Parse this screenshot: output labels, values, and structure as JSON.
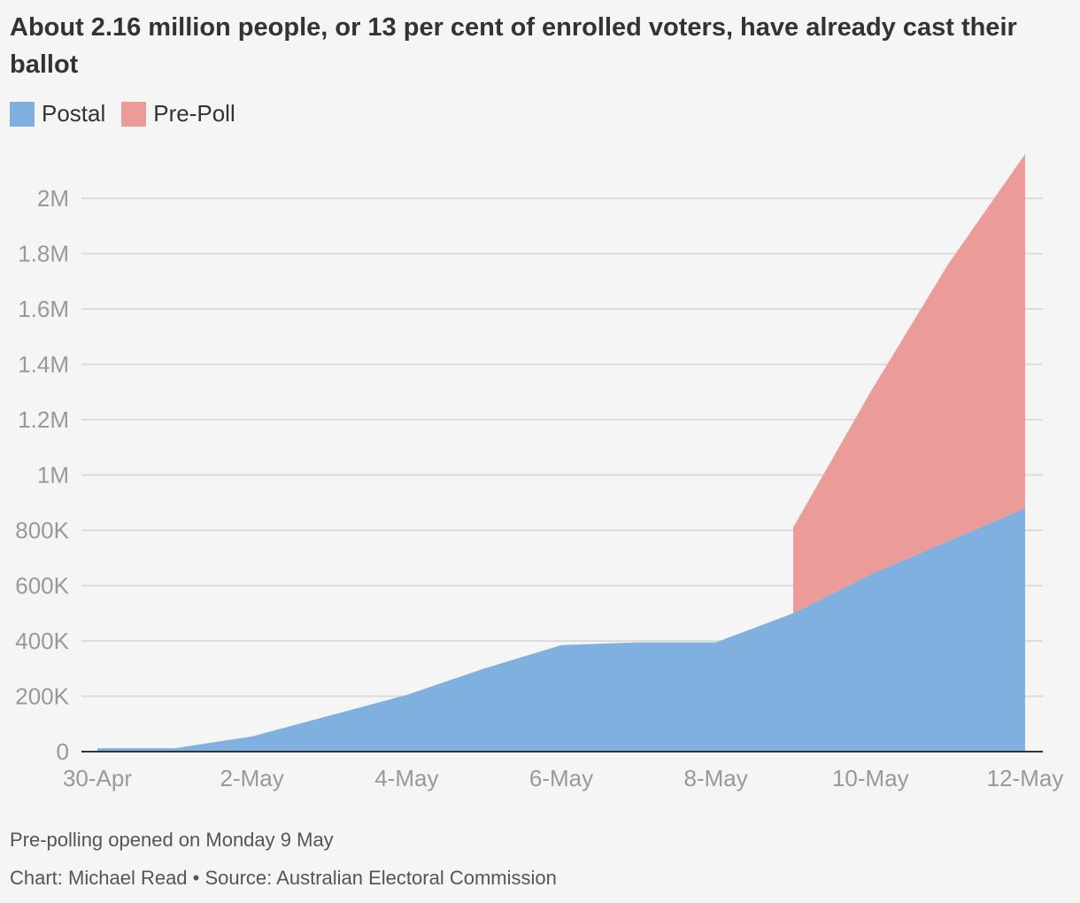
{
  "chart_data": {
    "type": "area",
    "stacked": true,
    "title": "About 2.16 million people, or 13 per cent of enrolled voters, have already cast their ballot",
    "x": [
      "30-Apr",
      "1-May",
      "2-May",
      "3-May",
      "4-May",
      "5-May",
      "6-May",
      "7-May",
      "8-May",
      "9-May",
      "10-May",
      "11-May",
      "12-May"
    ],
    "x_tick_labels": [
      "30-Apr",
      "2-May",
      "4-May",
      "6-May",
      "8-May",
      "10-May",
      "12-May"
    ],
    "series": [
      {
        "name": "Postal",
        "color": "#7fb0e0",
        "values": [
          12000,
          12000,
          55000,
          130000,
          205000,
          300000,
          385000,
          395000,
          395000,
          500000,
          640000,
          760000,
          880000
        ]
      },
      {
        "name": "Pre-Poll",
        "color": "#eb9c98",
        "values": [
          null,
          null,
          null,
          null,
          null,
          null,
          null,
          null,
          null,
          310000,
          660000,
          1000000,
          1280000
        ]
      }
    ],
    "ylim": [
      0,
      2160000
    ],
    "y_ticks": [
      0,
      200000,
      400000,
      600000,
      800000,
      1000000,
      1200000,
      1400000,
      1600000,
      1800000,
      2000000
    ],
    "y_tick_labels": [
      "0",
      "200K",
      "400K",
      "600K",
      "800K",
      "1M",
      "1.2M",
      "1.4M",
      "1.6M",
      "1.8M",
      "2M"
    ],
    "xlabel": "",
    "ylabel": "",
    "grid": true,
    "legend": "top-left",
    "note": "Pre-polling opened on Monday 9 May",
    "credit": "Chart: Michael Read • Source: Australian Electoral Commission"
  }
}
